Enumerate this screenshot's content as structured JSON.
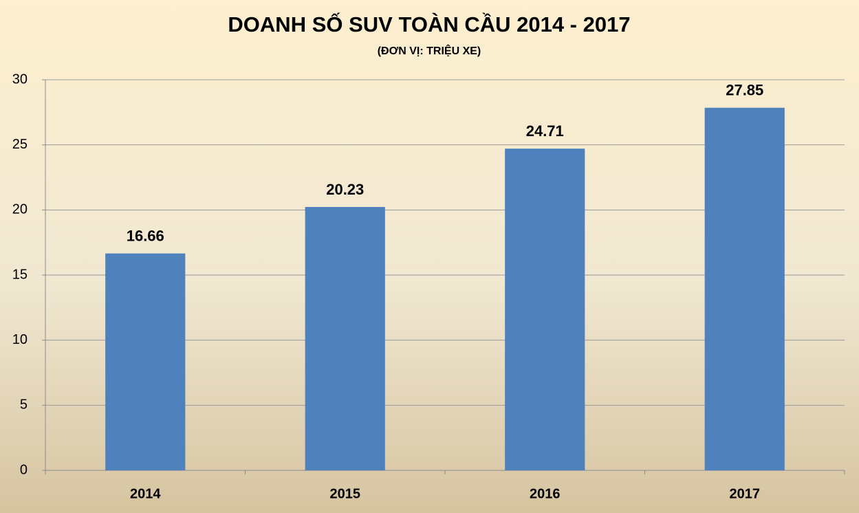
{
  "chart_data": {
    "type": "bar",
    "title": "DOANH SỐ SUV TOÀN CẦU 2014 - 2017",
    "subtitle": "(ĐƠN VỊ: TRIỆU XE)",
    "categories": [
      "2014",
      "2015",
      "2016",
      "2017"
    ],
    "values": [
      16.66,
      20.23,
      24.71,
      27.85
    ],
    "color": "#4f81bd",
    "ylim": [
      0,
      30
    ],
    "yticks": [
      0,
      5,
      10,
      15,
      20,
      25,
      30
    ],
    "grid": true
  }
}
